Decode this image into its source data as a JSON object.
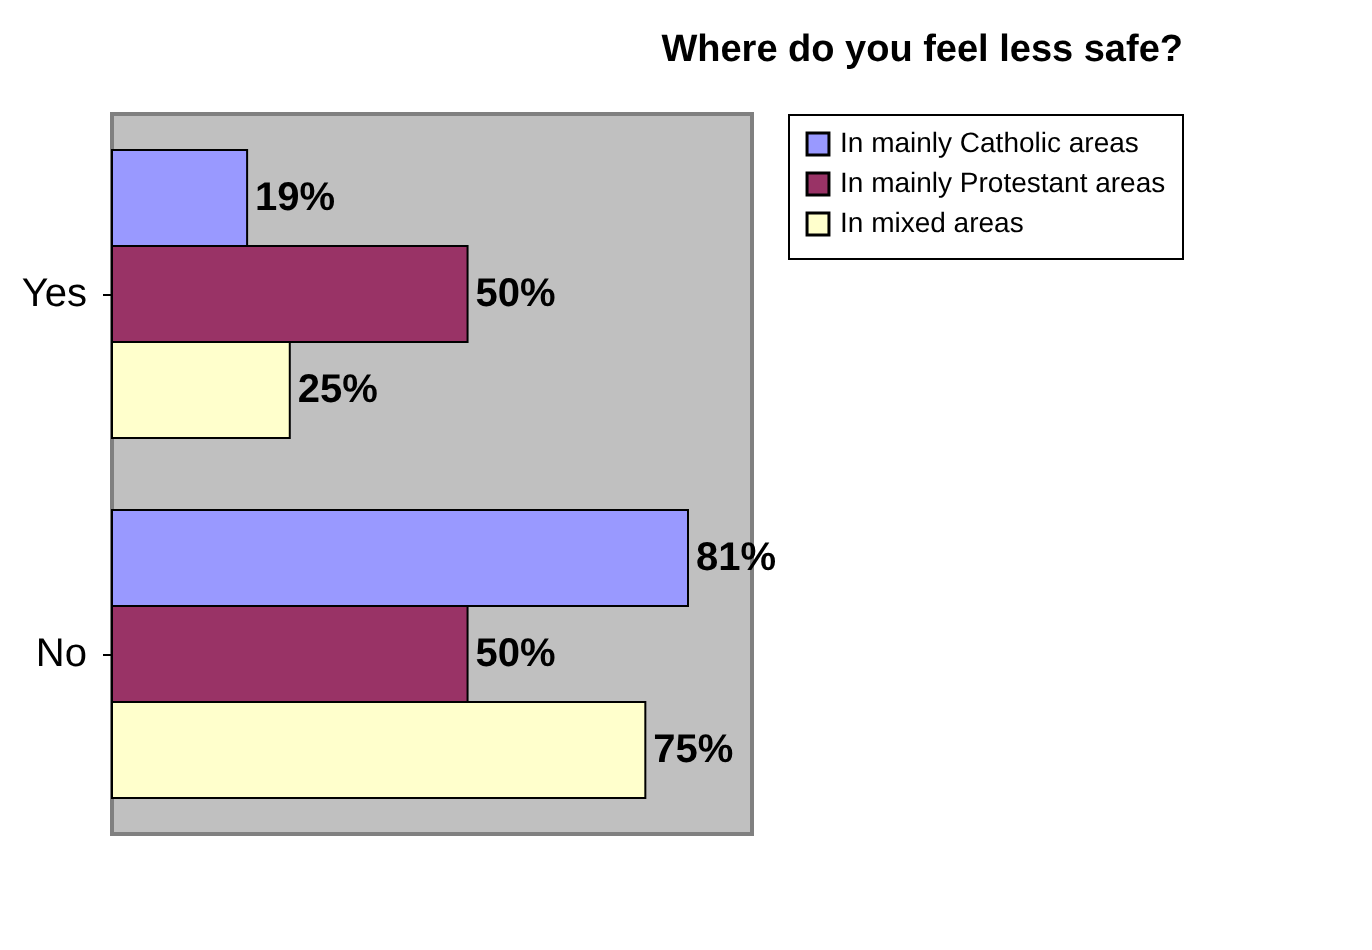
{
  "chart_data": {
    "type": "bar",
    "orientation": "horizontal",
    "title": "Where do you feel less safe?",
    "categories": [
      "Yes",
      "No"
    ],
    "legend": "right",
    "series": [
      {
        "name": "In mainly Catholic areas",
        "color": "#9999ff",
        "values": [
          19,
          81
        ],
        "value_labels": [
          "19%",
          "81%"
        ]
      },
      {
        "name": "In mainly Protestant areas",
        "color": "#993366",
        "values": [
          50,
          50
        ],
        "value_labels": [
          "50%",
          "50%"
        ]
      },
      {
        "name": "In mixed areas",
        "color": "#ffffcc",
        "values": [
          25,
          75
        ],
        "value_labels": [
          "25%",
          "75%"
        ]
      }
    ]
  }
}
